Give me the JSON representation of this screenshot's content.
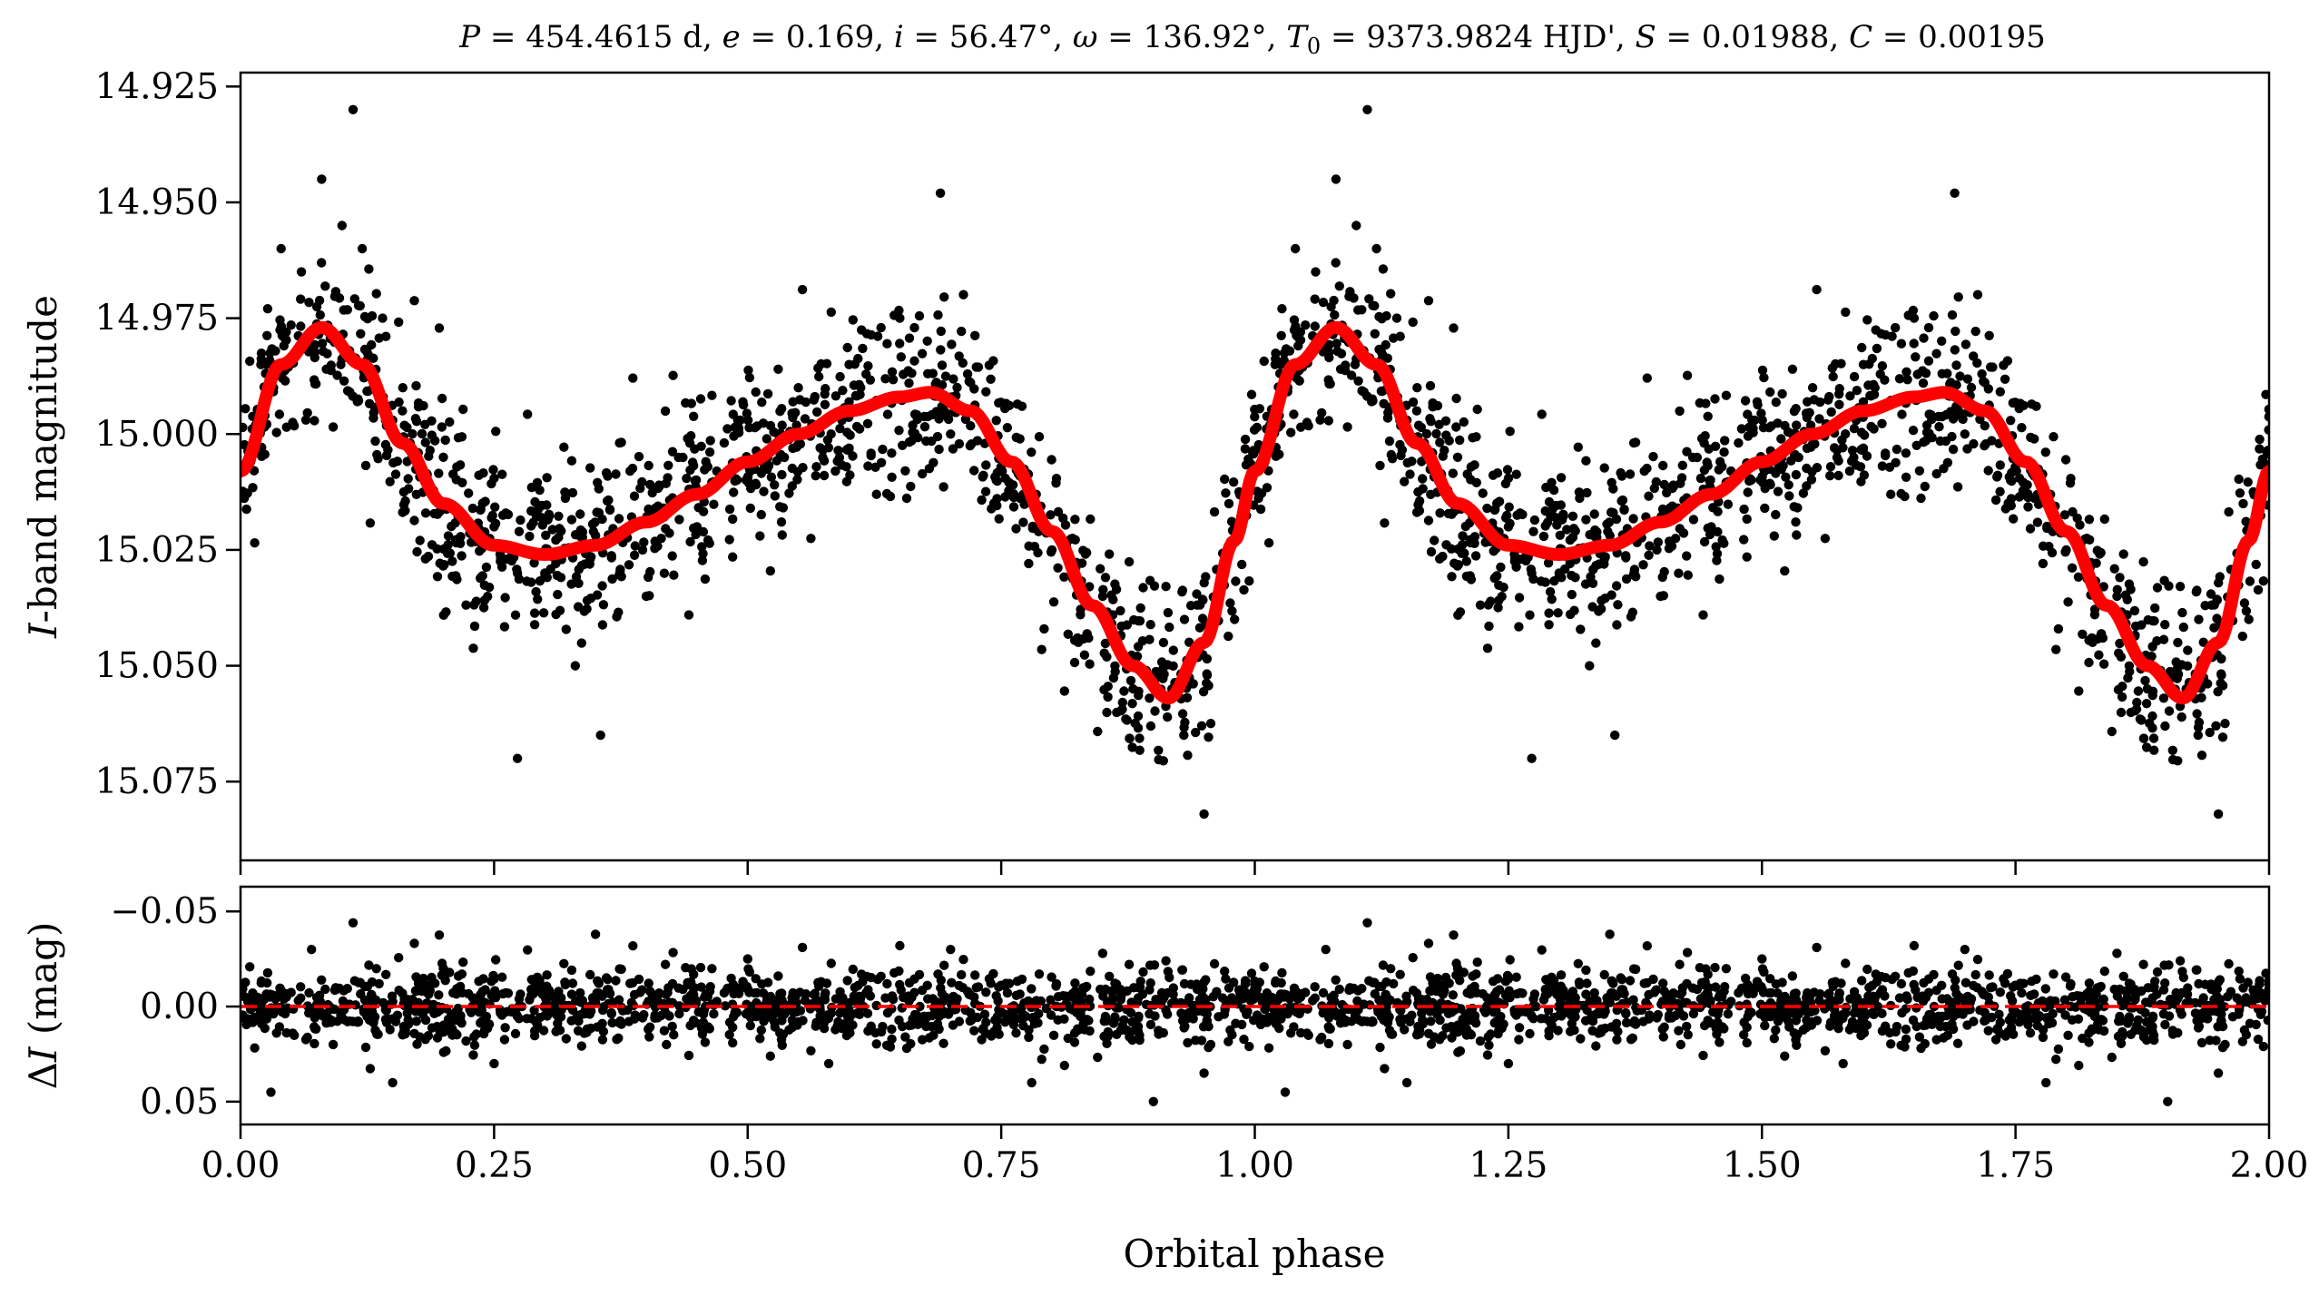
{
  "chart_data": [
    {
      "type": "scatter",
      "panel": "top",
      "title": "P = 454.4615 d, e = 0.169, i = 56.47°, ω = 136.92°, T0 = 9373.9824 HJD', S = 0.01988, C = 0.00195",
      "title_parts": {
        "P_sym": "P",
        "P_val": " = 454.4615 d, ",
        "e_sym": "e",
        "e_val": " = 0.169, ",
        "i_sym": "i",
        "i_val": " = 56.47°, ",
        "w_sym": "ω",
        "w_val": " = 136.92°, ",
        "T_sym": "T",
        "T_sub": "0",
        "T_val": " = 9373.9824 HJD', ",
        "S_sym": "S",
        "S_val": " = 0.01988, ",
        "C_sym": "C",
        "C_val": " = 0.00195"
      },
      "ylabel_italic": "I",
      "ylabel_rest": "-band magnitude",
      "ylabel": "I-band magnitude",
      "y_inverted": true,
      "ylim": [
        15.092,
        14.922
      ],
      "xlim": [
        0.0,
        2.0
      ],
      "yticks": [
        14.925,
        14.95,
        14.975,
        15.0,
        15.025,
        15.05,
        15.075
      ],
      "ytick_labels": [
        "14.925",
        "14.950",
        "14.975",
        "15.000",
        "15.025",
        "15.050",
        "15.075"
      ],
      "series": [
        {
          "name": "observations",
          "kind": "scatter",
          "color": "#000000",
          "model_phase_points": 0,
          "x": [
            0.02,
            0.04,
            0.06,
            0.08,
            0.1,
            0.111,
            0.12,
            0.14,
            0.16,
            0.2,
            0.25,
            0.273,
            0.3,
            0.33,
            0.355,
            0.4,
            0.45,
            0.5,
            0.55,
            0.6,
            0.65,
            0.69,
            0.7,
            0.75,
            0.8,
            0.85,
            0.88,
            0.91,
            0.93,
            0.95,
            0.98
          ],
          "y": [
            14.985,
            14.96,
            14.965,
            14.945,
            14.955,
            14.93,
            14.96,
            14.975,
            14.99,
            15.005,
            15.02,
            15.07,
            15.03,
            15.05,
            15.065,
            15.035,
            15.02,
            15.01,
            14.99,
            14.985,
            14.975,
            14.948,
            15.0,
            15.005,
            15.025,
            15.035,
            15.055,
            15.045,
            15.065,
            15.082,
            15.04
          ]
        },
        {
          "name": "model",
          "kind": "line",
          "color": "#ff0000",
          "phase": [
            0.0,
            0.04,
            0.08,
            0.12,
            0.16,
            0.2,
            0.25,
            0.3,
            0.35,
            0.4,
            0.45,
            0.5,
            0.55,
            0.6,
            0.65,
            0.68,
            0.72,
            0.76,
            0.8,
            0.84,
            0.88,
            0.915,
            0.95,
            0.98,
            1.0
          ],
          "values": [
            15.008,
            14.985,
            14.977,
            14.985,
            15.002,
            15.015,
            15.024,
            15.026,
            15.024,
            15.019,
            15.013,
            15.006,
            15.0,
            14.995,
            14.992,
            14.991,
            14.995,
            15.006,
            15.021,
            15.037,
            15.05,
            15.057,
            15.045,
            15.023,
            15.008
          ]
        }
      ]
    },
    {
      "type": "scatter",
      "panel": "bottom",
      "xlabel": "Orbital phase",
      "ylabel_delta": "Δ",
      "ylabel_italic": "I",
      "ylabel_rest": " (mag)",
      "ylabel": "ΔI (mag)",
      "y_inverted": true,
      "ylim": [
        0.062,
        -0.063
      ],
      "xlim": [
        0.0,
        2.0
      ],
      "yticks": [
        -0.05,
        0.0,
        0.05
      ],
      "ytick_labels": [
        "−0.05",
        "0.00",
        "0.05"
      ],
      "xticks": [
        0.0,
        0.25,
        0.5,
        0.75,
        1.0,
        1.25,
        1.5,
        1.75,
        2.0
      ],
      "xtick_labels": [
        "0.00",
        "0.25",
        "0.50",
        "0.75",
        "1.00",
        "1.25",
        "1.50",
        "1.75",
        "2.00"
      ],
      "series": [
        {
          "name": "residuals",
          "kind": "scatter",
          "color": "#000000",
          "x": [
            0.03,
            0.07,
            0.111,
            0.15,
            0.2,
            0.25,
            0.35,
            0.42,
            0.5,
            0.58,
            0.65,
            0.7,
            0.78,
            0.85,
            0.9,
            0.95
          ],
          "y": [
            0.045,
            -0.03,
            -0.044,
            0.04,
            -0.02,
            0.03,
            -0.038,
            0.02,
            -0.025,
            0.03,
            -0.032,
            -0.03,
            0.04,
            -0.028,
            0.05,
            0.035
          ]
        },
        {
          "name": "zero-line",
          "kind": "hline",
          "color": "#ff0000",
          "y": 0.0
        }
      ]
    }
  ]
}
